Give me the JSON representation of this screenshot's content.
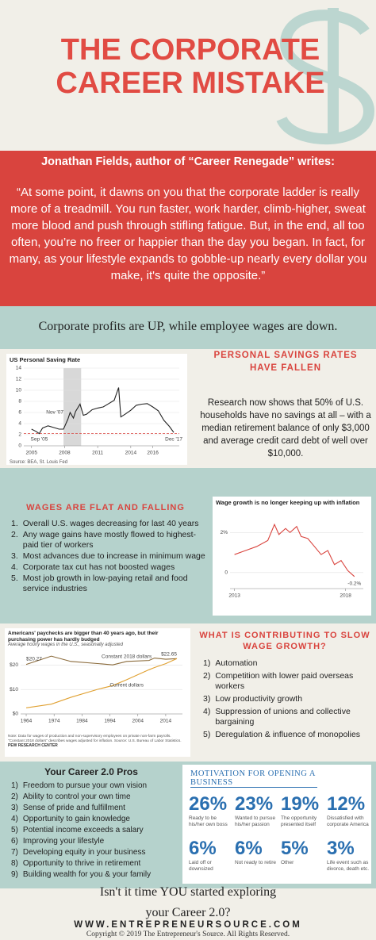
{
  "header": {
    "title": "THE CORPORATE CAREER MISTAKE"
  },
  "quote": {
    "attribution": "Jonathan Fields, author of “Career Renegade” writes:",
    "text": "“At some point, it dawns on you that the corporate ladder is really more of a treadmill. You run faster, work harder, climb-higher, sweat more blood and push through stifling fatigue. But, in the end, all too often, you’re no freer or happier than the day you began. In fact, for many, as your lifestyle expands to gobble-up nearly every dollar you make, it's quite the opposite.”"
  },
  "banner": "Corporate profits are UP, while employee wages are down.",
  "savings": {
    "heading": "PERSONAL SAVINGS RATES HAVE FALLEN",
    "text": "Research now shows that 50% of U.S. households have no savings at all – with a median retirement balance of only $3,000 and average credit card debt of well over $10,000."
  },
  "wages": {
    "heading": "WAGES ARE FLAT AND FALLING",
    "items": [
      {
        "marker": "1.",
        "text": "Overall U.S. wages decreasing for last 40 years"
      },
      {
        "marker": "2.",
        "text": "Any wage gains have mostly flowed to highest-paid tier of workers"
      },
      {
        "marker": "3.",
        "text": "Most advances due to increase in minimum wage"
      },
      {
        "marker": "4.",
        "text": "Corporate tax cut has not boosted wages"
      },
      {
        "marker": "5.",
        "text": "Most job growth in low-paying retail and food service industries"
      }
    ]
  },
  "contributing": {
    "heading": "WHAT IS CONTRIBUTING TO SLOW WAGE GROWTH?",
    "items": [
      {
        "marker": "1)",
        "text": "Automation"
      },
      {
        "marker": "2)",
        "text": "Competition with lower paid overseas workers"
      },
      {
        "marker": "3)",
        "text": "Low productivity growth"
      },
      {
        "marker": "4)",
        "text": "Suppression of unions and collective bargaining"
      },
      {
        "marker": "5)",
        "text": "Deregulation & influence of monopolies"
      }
    ]
  },
  "pros": {
    "heading": "Your Career 2.0 Pros",
    "items": [
      {
        "marker": "1)",
        "text": "Freedom to pursue your own vision"
      },
      {
        "marker": "2)",
        "text": "Ability to control your own time"
      },
      {
        "marker": "3)",
        "text": "Sense of pride and fulfillment"
      },
      {
        "marker": "4)",
        "text": "Opportunity to gain knowledge"
      },
      {
        "marker": "5)",
        "text": "Potential income exceeds a salary"
      },
      {
        "marker": "6)",
        "text": "Improving your lifestyle"
      },
      {
        "marker": "7)",
        "text": "Developing equity in your business"
      },
      {
        "marker": "8)",
        "text": "Opportunity to thrive in retirement"
      },
      {
        "marker": "9)",
        "text": "Building wealth for you & your family"
      }
    ]
  },
  "motivation": {
    "heading": "MOTIVATION FOR OPENING A BUSINESS",
    "stats": [
      {
        "value": "26%",
        "label": "Ready to be his/her own boss"
      },
      {
        "value": "23%",
        "label": "Wanted to pursue his/her passion"
      },
      {
        "value": "19%",
        "label": "The opportunity presented itself"
      },
      {
        "value": "12%",
        "label": "Dissatisfied with corporate America"
      },
      {
        "value": "6%",
        "label": "Laid off or downsized"
      },
      {
        "value": "6%",
        "label": "Not ready to retire"
      },
      {
        "value": "5%",
        "label": "Other"
      },
      {
        "value": "3%",
        "label": "Life event such as divorce, death etc."
      }
    ]
  },
  "footer": {
    "question": "Isn't it time YOU started exploring your Career 2.0?",
    "url": "WWW.ENTREPRENEURSOURCE.COM",
    "copyright": "Copyright © 2019 The Entrepreneur's Source. All Rights Reserved."
  },
  "chart_data": [
    {
      "type": "line",
      "title": "US Personal Saving Rate",
      "source": "Source: BEA, St. Louis Fed",
      "x": [
        2005.0,
        2005.4,
        2005.7,
        2006.0,
        2006.5,
        2007.0,
        2007.5,
        2007.9,
        2008.3,
        2008.5,
        2008.8,
        2009.0,
        2009.4,
        2009.7,
        2010.0,
        2010.5,
        2011.0,
        2011.5,
        2012.0,
        2012.5,
        2012.9,
        2013.1,
        2013.5,
        2014.0,
        2014.5,
        2015.0,
        2015.5,
        2016.0,
        2016.5,
        2017.0,
        2017.5,
        2017.9
      ],
      "series": [
        {
          "color": "#222222",
          "values": [
            3.0,
            2.6,
            2.2,
            3.2,
            3.6,
            3.3,
            3.0,
            3.0,
            4.8,
            6.0,
            5.0,
            6.2,
            7.5,
            5.5,
            5.7,
            6.5,
            6.8,
            7.0,
            7.6,
            8.2,
            10.5,
            5.2,
            5.7,
            6.4,
            7.3,
            7.5,
            7.6,
            7.0,
            6.3,
            4.6,
            3.5,
            2.4
          ]
        }
      ],
      "reference_line": 2.2,
      "reference_color": "#d9443e",
      "shaded": [
        2007.9,
        2009.5
      ],
      "annotations": [
        "Nov '07",
        "Sep '05",
        "Dec '17"
      ],
      "xlim": [
        2004.3,
        2018.4
      ],
      "ylim": [
        0,
        14
      ],
      "xticks": [
        2005,
        2008,
        2011,
        2014,
        2016
      ],
      "yticks": [
        0,
        2,
        4,
        6,
        8,
        10,
        12,
        14
      ],
      "grid": true
    },
    {
      "type": "line",
      "title": "Wage growth is no longer keeping up with inflation",
      "x": [
        2013.0,
        2013.5,
        2014.0,
        2014.5,
        2014.8,
        2015.0,
        2015.3,
        2015.5,
        2015.8,
        2016.0,
        2016.3,
        2016.6,
        2016.9,
        2017.2,
        2017.5,
        2017.8,
        2018.1,
        2018.4
      ],
      "series": [
        {
          "color": "#d9443e",
          "values": [
            0.9,
            1.1,
            1.3,
            1.6,
            2.4,
            1.9,
            2.2,
            2.0,
            2.3,
            1.8,
            1.7,
            1.3,
            0.9,
            1.1,
            0.4,
            0.6,
            0.1,
            -0.2
          ]
        }
      ],
      "annotations": [
        "-0.2%"
      ],
      "xlim": [
        2012.8,
        2018.8
      ],
      "ylim": [
        -0.8,
        3
      ],
      "xticks": [
        2013,
        2018
      ],
      "yticks": [
        0,
        {
          "value": 2,
          "label": "2%"
        }
      ],
      "grid": true
    },
    {
      "type": "line",
      "title": "Americans' paychecks are bigger than 40 years ago, but their purchasing power has hardly budged",
      "subtitle": "Average hourly wages in the U.S., seasonally adjusted",
      "x": [
        1964,
        1973,
        1980,
        1990,
        1995,
        2000,
        2008,
        2010,
        2014,
        2018
      ],
      "series": [
        {
          "name": "Constant 2018 dollars",
          "color": "#8a6a3a",
          "values": [
            20.27,
            23.68,
            21.5,
            20.6,
            20.1,
            21.5,
            21.9,
            22.9,
            22.4,
            22.65
          ]
        },
        {
          "name": "Current dollars",
          "color": "#e0a030",
          "values": [
            2.5,
            4.0,
            6.8,
            10.2,
            11.6,
            14.0,
            18.1,
            19.0,
            20.6,
            22.65
          ]
        }
      ],
      "annotations": [
        "$20.27",
        "$22.65"
      ],
      "note": "Note: Data for wages of production and non-supervisory employees on private non-farm payrolls. “Constant 2018 dollars” describes wages adjusted for inflation. Source: U.S. Bureau of Labor Statistics.",
      "credit": "PEW RESEARCH CENTER",
      "xlim": [
        1962,
        2020
      ],
      "ylim": [
        0,
        26
      ],
      "xticks": [
        1964,
        1974,
        1984,
        1994,
        2004,
        2014
      ],
      "yticks": [
        {
          "value": 0,
          "label": "$0"
        },
        {
          "value": 10,
          "label": "$10"
        },
        {
          "value": 20,
          "label": "$20"
        }
      ],
      "grid": true
    }
  ]
}
